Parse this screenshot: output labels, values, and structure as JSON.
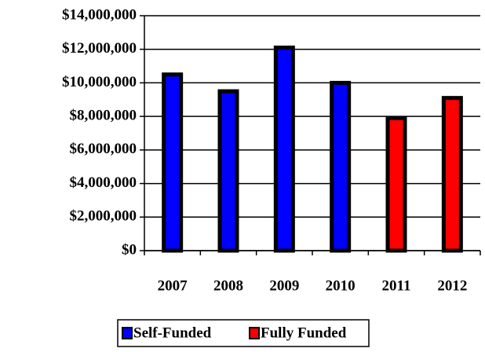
{
  "chart_data": {
    "type": "bar",
    "categories": [
      "2007",
      "2008",
      "2009",
      "2010",
      "2011",
      "2012"
    ],
    "series": [
      {
        "name": "Self-Funded",
        "color": "#0000ff",
        "values": [
          10500000,
          9500000,
          12100000,
          10000000,
          null,
          null
        ]
      },
      {
        "name": "Fully Funded",
        "color": "#ff0000",
        "values": [
          null,
          null,
          null,
          null,
          7900000,
          9100000
        ]
      }
    ],
    "ylim": [
      0,
      14000000
    ],
    "yticks": [
      {
        "value": 0,
        "label": "$0"
      },
      {
        "value": 2000000,
        "label": "$2,000,000"
      },
      {
        "value": 4000000,
        "label": "$4,000,000"
      },
      {
        "value": 6000000,
        "label": "$6,000,000"
      },
      {
        "value": 8000000,
        "label": "$8,000,000"
      },
      {
        "value": 10000000,
        "label": "$10,000,000"
      },
      {
        "value": 12000000,
        "label": "$12,000,000"
      },
      {
        "value": 14000000,
        "label": "$14,000,000"
      }
    ],
    "grid": true,
    "legend": "bottom"
  }
}
